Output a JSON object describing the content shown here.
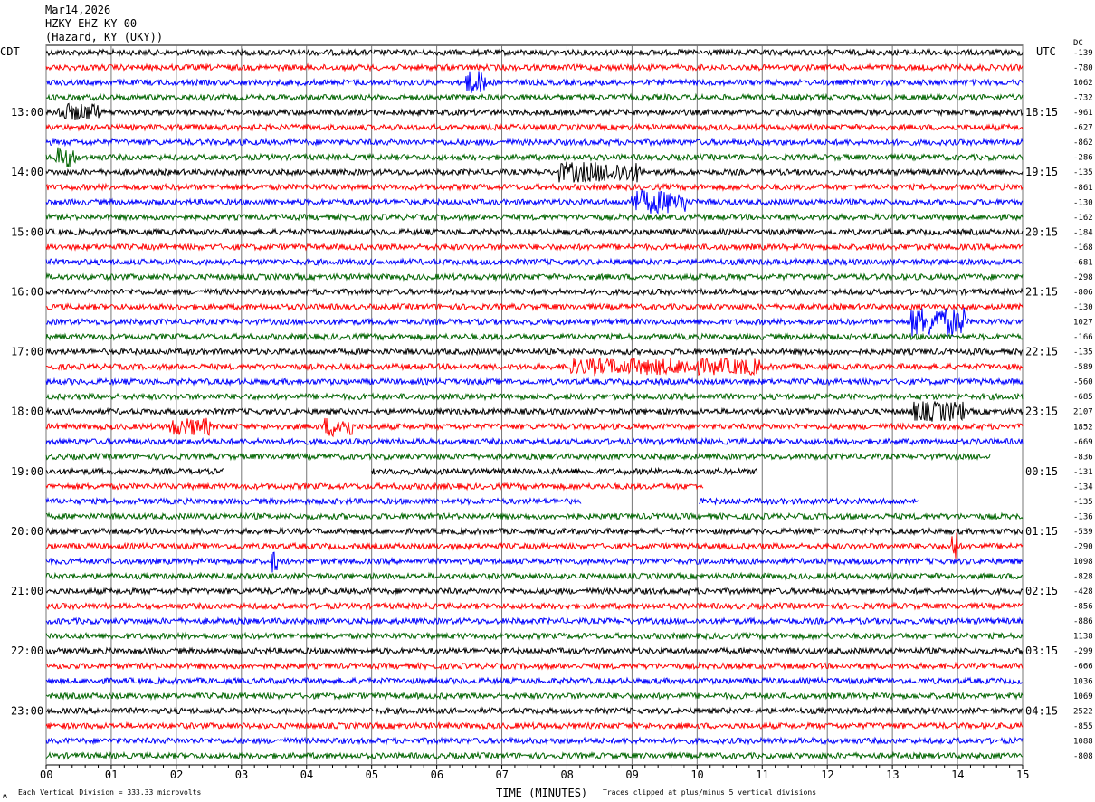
{
  "header": {
    "date": "Mar14,2026",
    "station": "HZKY EHZ KY 00",
    "location": "(Hazard, KY (UKY))"
  },
  "left_tz": "CDT",
  "right_tz": "UTC",
  "dc_label": "DC",
  "footer": {
    "scale": "Each Vertical Division =  333.33 microvolts",
    "xlabel": "TIME (MINUTES)",
    "clip_note": "Traces clipped at plus/minus 5 vertical divisions",
    "logo": "M"
  },
  "chart_data": {
    "type": "line",
    "title": "HZKY EHZ KY 00 helicorder",
    "xlabel": "TIME (MINUTES)",
    "xlim": [
      0,
      15
    ],
    "x_ticks": [
      "00",
      "01",
      "02",
      "03",
      "04",
      "05",
      "06",
      "07",
      "08",
      "09",
      "10",
      "11",
      "12",
      "13",
      "14",
      "15"
    ],
    "rows_per_hour": 4,
    "minutes_per_row": 15,
    "colors": [
      "#000000",
      "#ff0000",
      "#0000ff",
      "#006400"
    ],
    "left_hour_labels": [
      {
        "row": 4,
        "text": "13:00"
      },
      {
        "row": 8,
        "text": "14:00"
      },
      {
        "row": 12,
        "text": "15:00"
      },
      {
        "row": 16,
        "text": "16:00"
      },
      {
        "row": 20,
        "text": "17:00"
      },
      {
        "row": 24,
        "text": "18:00"
      },
      {
        "row": 28,
        "text": "19:00"
      },
      {
        "row": 32,
        "text": "20:00"
      },
      {
        "row": 36,
        "text": "21:00"
      },
      {
        "row": 40,
        "text": "22:00"
      },
      {
        "row": 44,
        "text": "23:00"
      }
    ],
    "right_hour_labels": [
      {
        "row": 4,
        "text": "18:15"
      },
      {
        "row": 8,
        "text": "19:15"
      },
      {
        "row": 12,
        "text": "20:15"
      },
      {
        "row": 16,
        "text": "21:15"
      },
      {
        "row": 20,
        "text": "22:15"
      },
      {
        "row": 24,
        "text": "23:15"
      },
      {
        "row": 28,
        "text": "00:15"
      },
      {
        "row": 32,
        "text": "01:15"
      },
      {
        "row": 36,
        "text": "02:15"
      },
      {
        "row": 40,
        "text": "03:15"
      },
      {
        "row": 44,
        "text": "04:15"
      }
    ],
    "dc_offsets": [
      "-139",
      "-780",
      "1062",
      "-732",
      "-961",
      "-627",
      "-862",
      "-286",
      "-135",
      "-861",
      "-130",
      "-162",
      "-184",
      "-168",
      "-681",
      "-298",
      "-806",
      "-130",
      "1027",
      "-166",
      "-135",
      "-589",
      "-560",
      "-685",
      "2107",
      "1852",
      "-669",
      "-836",
      "-131",
      "-134",
      "-135",
      "-136",
      "-539",
      "-290",
      "1098",
      "-828",
      "-428",
      "-856",
      "-886",
      "1138",
      "-299",
      "-666",
      "1036",
      "1069",
      "2522",
      "-855",
      "1088",
      "-808"
    ],
    "gaps": [
      {
        "row": 27,
        "segments": [
          [
            0,
            14.5
          ]
        ]
      },
      {
        "row": 28,
        "segments": [
          [
            0,
            2.73
          ],
          [
            5.0,
            10.93
          ]
        ]
      },
      {
        "row": 29,
        "segments": [
          [
            0,
            10.1
          ]
        ]
      },
      {
        "row": 30,
        "segments": [
          [
            0,
            8.22
          ],
          [
            10.03,
            13.4
          ]
        ]
      }
    ],
    "events": [
      {
        "row": 2,
        "minute": 6.6,
        "width": 0.3,
        "amp": 3
      },
      {
        "row": 4,
        "minute": 0.5,
        "width": 0.6,
        "amp": 2
      },
      {
        "row": 7,
        "minute": 0.3,
        "width": 0.3,
        "amp": 2.5
      },
      {
        "row": 8,
        "minute": 8.5,
        "width": 1.2,
        "amp": 2.5
      },
      {
        "row": 10,
        "minute": 9.4,
        "width": 0.8,
        "amp": 3
      },
      {
        "row": 18,
        "minute": 13.7,
        "width": 0.8,
        "amp": 4
      },
      {
        "row": 21,
        "minute": 9.5,
        "width": 3.0,
        "amp": 1.8
      },
      {
        "row": 24,
        "minute": 13.7,
        "width": 0.8,
        "amp": 2.5
      },
      {
        "row": 25,
        "minute": 2.2,
        "width": 0.6,
        "amp": 2
      },
      {
        "row": 25,
        "minute": 4.5,
        "width": 0.4,
        "amp": 2.5
      },
      {
        "row": 33,
        "minute": 13.95,
        "width": 0.05,
        "amp": 5
      },
      {
        "row": 34,
        "minute": 3.5,
        "width": 0.05,
        "amp": 3
      }
    ]
  }
}
